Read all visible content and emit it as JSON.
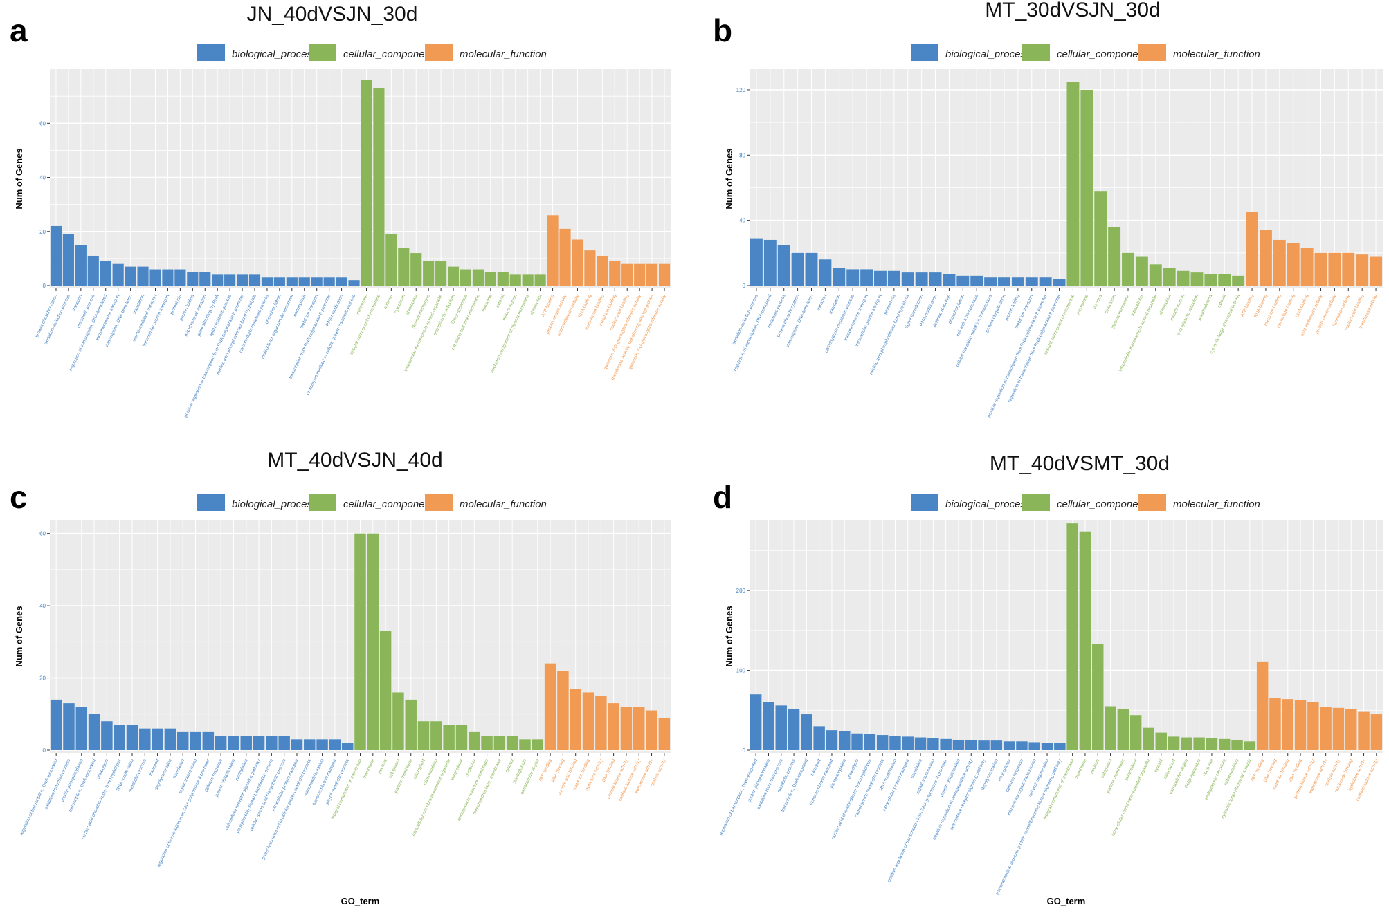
{
  "figure": {
    "x_axis_title": "GO_term",
    "y_axis_title": "Num of Genes",
    "legend": [
      {
        "name": "biological_process",
        "color": "#4a86c5"
      },
      {
        "name": "cellular_component",
        "color": "#8ab659"
      },
      {
        "name": "molecular_function",
        "color": "#f09a54"
      }
    ]
  },
  "chart_data": [
    {
      "panel": "a",
      "type": "bar",
      "title": "JN_40dVSJN_30d",
      "xlabel": "",
      "ylabel": "Num of Genes",
      "ylim": [
        0,
        79
      ],
      "yticks": [
        0,
        20,
        40,
        60
      ],
      "categories": [
        "protein phosphorylation",
        "oxidation-reduction process",
        "transport",
        "metabolic process",
        "regulation of transcription, DNA-templated",
        "transmembrane transport",
        "transcription, DNA-templated",
        "translation",
        "vesicle-mediated transport",
        "intracellular protein transport",
        "proteolysis",
        "protein folding",
        "mitochondrial transport",
        "gene silencing by RNA",
        "lipid metabolic process",
        "positive regulation of transcription from RNA polymerase II promoter",
        "nucleic acid phosphodiester bond hydrolysis",
        "carbohydrate metabolic process",
        "phosphorylation",
        "multicellular organism development",
        "endocytosis",
        "metal ion transport",
        "transcription from RNA polymerase II promoter",
        "RNA modification",
        "proteolysis involved in cellular protein catabolic process",
        "membrane",
        "integral component of membrane",
        "nucleus",
        "cytoplasm",
        "chloroplast",
        "plasma membrane",
        "intracellular membrane-bounded organelle",
        "endoplasmic reticulum",
        "Golgi apparatus",
        "mitochondrial inner membrane",
        "ribosome",
        "cytosol",
        "mitochondrion",
        "anchored component of plasma membrane",
        "chloroplast",
        "ATP binding",
        "protein kinase activity",
        "oxidoreductase activity",
        "RNA binding",
        "calcium ion binding",
        "metal ion binding",
        "nucleic acid binding",
        "quercetin 3-O-glucosyltransferase activity",
        "transferase activity, transferring hexosyl groups",
        "quercetin 7-O-glucosyltransferase activity"
      ],
      "groups": [
        "BP",
        "BP",
        "BP",
        "BP",
        "BP",
        "BP",
        "BP",
        "BP",
        "BP",
        "BP",
        "BP",
        "BP",
        "BP",
        "BP",
        "BP",
        "BP",
        "BP",
        "BP",
        "BP",
        "BP",
        "BP",
        "BP",
        "BP",
        "BP",
        "BP",
        "CC",
        "CC",
        "CC",
        "CC",
        "CC",
        "CC",
        "CC",
        "CC",
        "CC",
        "CC",
        "CC",
        "CC",
        "CC",
        "CC",
        "CC",
        "MF",
        "MF",
        "MF",
        "MF",
        "MF",
        "MF",
        "MF",
        "MF",
        "MF",
        "MF"
      ],
      "values": [
        22,
        19,
        15,
        11,
        9,
        8,
        7,
        7,
        6,
        6,
        6,
        5,
        5,
        4,
        4,
        4,
        4,
        3,
        3,
        3,
        3,
        3,
        3,
        3,
        2,
        76,
        73,
        19,
        14,
        12,
        9,
        9,
        7,
        6,
        6,
        5,
        5,
        4,
        4,
        4,
        26,
        21,
        17,
        13,
        11,
        9,
        8,
        8,
        8,
        8
      ]
    },
    {
      "panel": "b",
      "type": "bar",
      "title": "MT_30dVSJN_30d",
      "xlabel": "",
      "ylabel": "Num of Genes",
      "ylim": [
        0,
        131
      ],
      "yticks": [
        0,
        40,
        80,
        120
      ],
      "categories": [
        "oxidation-reduction process",
        "regulation of transcription, DNA-templated",
        "metabolic process",
        "protein phosphorylation",
        "transcription, DNA-templated",
        "transport",
        "translation",
        "carbohydrate metabolic process",
        "transmembrane transport",
        "intracellular protein transport",
        "proteolysis",
        "nucleic acid phosphodiester bond hydrolysis",
        "signal transduction",
        "RNA modification",
        "defense response",
        "phosphorylation",
        "cell redox homeostasis",
        "cellular transition metal ion homeostasis",
        "protein ubiquitination",
        "protein folding",
        "metal ion transport",
        "positive regulation of transcription from RNA polymerase II promoter",
        "regulation of transcription from RNA polymerase II promoter",
        "integral component of membrane",
        "membrane",
        "nucleus",
        "cytoplasm",
        "plasma membrane",
        "intracellular",
        "intracellular membrane-bounded organelle",
        "chloroplast",
        "mitochondrion",
        "endoplasmic reticulum",
        "plasmodesma",
        "cytosol",
        "cytosolic large ribosomal subunit",
        "ATP binding",
        "RNA binding",
        "metal ion binding",
        "nucleotide binding",
        "DNA binding",
        "oxidoreductase activity",
        "protein kinase activity",
        "hydrolase activity",
        "nucleic acid binding",
        "transferase activity"
      ],
      "groups": [
        "BP",
        "BP",
        "BP",
        "BP",
        "BP",
        "BP",
        "BP",
        "BP",
        "BP",
        "BP",
        "BP",
        "BP",
        "BP",
        "BP",
        "BP",
        "BP",
        "BP",
        "BP",
        "BP",
        "BP",
        "BP",
        "BP",
        "BP",
        "CC",
        "CC",
        "CC",
        "CC",
        "CC",
        "CC",
        "CC",
        "CC",
        "CC",
        "CC",
        "CC",
        "CC",
        "CC",
        "MF",
        "MF",
        "MF",
        "MF",
        "MF",
        "MF",
        "MF",
        "MF",
        "MF",
        "MF"
      ],
      "values": [
        29,
        28,
        25,
        20,
        20,
        16,
        11,
        10,
        10,
        9,
        9,
        8,
        8,
        8,
        7,
        6,
        6,
        5,
        5,
        5,
        5,
        5,
        4,
        125,
        120,
        58,
        36,
        20,
        18,
        13,
        11,
        9,
        8,
        7,
        7,
        6,
        45,
        34,
        28,
        26,
        23,
        20,
        20,
        20,
        19,
        18
      ]
    },
    {
      "panel": "c",
      "type": "bar",
      "title": "MT_40dVSJN_40d",
      "xlabel": "GO_term",
      "ylabel": "Num of Genes",
      "ylim": [
        0,
        63
      ],
      "yticks": [
        0,
        20,
        40,
        60
      ],
      "categories": [
        "regulation of transcription, DNA-templated",
        "oxidation-reduction process",
        "protein phosphorylation",
        "transcription, DNA-templated",
        "proteolysis",
        "nucleic acid phosphodiester bond hydrolysis",
        "RNA modification",
        "metabolic process",
        "transport",
        "depolymerization",
        "translation",
        "signal transduction",
        "regulation of transcription from RNA polymerase II promoter",
        "defense response",
        "protein ubiquitination",
        "methylation",
        "cell surface receptor signaling pathway",
        "phosphorelay signal transduction system",
        "cellular amino acid biosynthetic process",
        "intracellular protein transport",
        "proteolysis involved in cellular protein catabolic process",
        "mitochondrial fission",
        "transmembrane transport",
        "phytol metabolic process",
        "integral component of membrane",
        "membrane",
        "nucleus",
        "cytoplasm",
        "plasma membrane",
        "chloroplast",
        "mitochondrion",
        "intracellular membrane-bounded organelle",
        "intracellular",
        "nucleolus",
        "endoplasmic reticulum membrane",
        "mitochondrial inner membrane",
        "cytosol",
        "plastoglobule",
        "extracellular region",
        "ATP binding",
        "RNA binding",
        "nucleic acid binding",
        "metal ion binding",
        "hydrolase activity",
        "DNA binding",
        "protein kinase activity",
        "oxidoreductase activity",
        "transferase activity",
        "catalytic activity"
      ],
      "groups": [
        "BP",
        "BP",
        "BP",
        "BP",
        "BP",
        "BP",
        "BP",
        "BP",
        "BP",
        "BP",
        "BP",
        "BP",
        "BP",
        "BP",
        "BP",
        "BP",
        "BP",
        "BP",
        "BP",
        "BP",
        "BP",
        "BP",
        "BP",
        "BP",
        "CC",
        "CC",
        "CC",
        "CC",
        "CC",
        "CC",
        "CC",
        "CC",
        "CC",
        "CC",
        "CC",
        "CC",
        "CC",
        "CC",
        "CC",
        "MF",
        "MF",
        "MF",
        "MF",
        "MF",
        "MF",
        "MF",
        "MF",
        "MF",
        "MF"
      ],
      "values": [
        14,
        13,
        12,
        10,
        8,
        7,
        7,
        6,
        6,
        6,
        5,
        5,
        5,
        4,
        4,
        4,
        4,
        4,
        4,
        3,
        3,
        3,
        3,
        2,
        60,
        60,
        33,
        16,
        14,
        8,
        8,
        7,
        7,
        5,
        4,
        4,
        4,
        3,
        3,
        24,
        22,
        17,
        16,
        15,
        13,
        12,
        12,
        11,
        9
      ]
    },
    {
      "panel": "d",
      "type": "bar",
      "title": "MT_40dVSMT_30d",
      "xlabel": "GO_term",
      "ylabel": "Num of Genes",
      "ylim": [
        0,
        285
      ],
      "yticks": [
        0,
        100,
        200
      ],
      "categories": [
        "regulation of transcription, DNA-templated",
        "protein phosphorylation",
        "oxidation-reduction process",
        "metabolic process",
        "transcription, DNA-templated",
        "transport",
        "transmembrane transport",
        "phosphorylation",
        "proteolysis",
        "nucleic acid phosphodiester bond hydrolysis",
        "carbohydrate metabolic process",
        "RNA modification",
        "intracellular protein transport",
        "translation",
        "signal transduction",
        "positive regulation of transcription from RNA polymerase II promoter",
        "protein ubiquitination",
        "negative regulation of endopeptidase activity",
        "cell surface receptor signaling pathway",
        "depolymerization",
        "endocytosis",
        "defense response",
        "intracellular signal transduction",
        "cell wall organization",
        "transmembrane receptor protein serine/threonine kinase signaling pathway",
        "integral component of membrane",
        "membrane",
        "nucleus",
        "cytoplasm",
        "plasma membrane",
        "intracellular",
        "intracellular membrane-bounded organelle",
        "cytosol",
        "chloroplast",
        "extracellular region",
        "Golgi apparatus",
        "ribosome",
        "endoplasmic reticulum",
        "mitochondrion",
        "cytosolic large ribosomal subunit",
        "ATP binding",
        "DNA binding",
        "metal ion binding",
        "RNA binding",
        "protein kinase activity",
        "transferase activity",
        "catalytic activity",
        "nucleotide binding",
        "hydrolase activity",
        "oxidoreductase activity"
      ],
      "groups": [
        "BP",
        "BP",
        "BP",
        "BP",
        "BP",
        "BP",
        "BP",
        "BP",
        "BP",
        "BP",
        "BP",
        "BP",
        "BP",
        "BP",
        "BP",
        "BP",
        "BP",
        "BP",
        "BP",
        "BP",
        "BP",
        "BP",
        "BP",
        "BP",
        "BP",
        "CC",
        "CC",
        "CC",
        "CC",
        "CC",
        "CC",
        "CC",
        "CC",
        "CC",
        "CC",
        "CC",
        "CC",
        "CC",
        "CC",
        "CC",
        "MF",
        "MF",
        "MF",
        "MF",
        "MF",
        "MF",
        "MF",
        "MF",
        "MF",
        "MF"
      ],
      "values": [
        70,
        60,
        56,
        52,
        45,
        30,
        25,
        24,
        21,
        20,
        19,
        18,
        17,
        16,
        15,
        14,
        13,
        13,
        12,
        12,
        11,
        11,
        10,
        9,
        9,
        284,
        274,
        133,
        55,
        52,
        44,
        28,
        22,
        17,
        16,
        16,
        15,
        14,
        13,
        11,
        111,
        65,
        64,
        63,
        60,
        54,
        53,
        52,
        48,
        45
      ]
    }
  ]
}
